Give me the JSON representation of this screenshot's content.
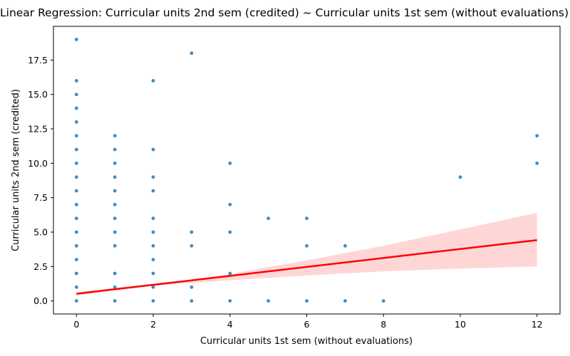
{
  "chart_data": {
    "type": "scatter",
    "title": "Linear Regression: Curricular units 2nd sem (credited) ~ Curricular units 1st sem (without evaluations)",
    "xlabel": "Curricular units 1st sem (without evaluations)",
    "ylabel": "Curricular units 2nd sem (credited)",
    "xlim": [
      -0.6,
      12.6
    ],
    "ylim": [
      -0.95,
      19.95
    ],
    "xticks": [
      0,
      2,
      4,
      6,
      8,
      10,
      12
    ],
    "xtick_labels": [
      "0",
      "2",
      "4",
      "6",
      "8",
      "10",
      "12"
    ],
    "yticks": [
      0,
      2.5,
      5,
      7.5,
      10,
      12.5,
      15,
      17.5
    ],
    "ytick_labels": [
      "0.0",
      "2.5",
      "5.0",
      "7.5",
      "10.0",
      "12.5",
      "15.0",
      "17.5"
    ],
    "grid": false,
    "points_color": "#1f77b4",
    "regression_color": "#ff0000",
    "ci_color": "#ffd6d6",
    "points": [
      [
        0,
        0
      ],
      [
        0,
        1
      ],
      [
        0,
        2
      ],
      [
        0,
        3
      ],
      [
        0,
        4
      ],
      [
        0,
        5
      ],
      [
        0,
        6
      ],
      [
        0,
        7
      ],
      [
        0,
        8
      ],
      [
        0,
        9
      ],
      [
        0,
        10
      ],
      [
        0,
        11
      ],
      [
        0,
        12
      ],
      [
        0,
        13
      ],
      [
        0,
        14
      ],
      [
        0,
        15
      ],
      [
        0,
        16
      ],
      [
        0,
        19
      ],
      [
        1,
        0
      ],
      [
        1,
        1
      ],
      [
        1,
        2
      ],
      [
        1,
        4
      ],
      [
        1,
        5
      ],
      [
        1,
        6
      ],
      [
        1,
        7
      ],
      [
        1,
        8
      ],
      [
        1,
        9
      ],
      [
        1,
        10
      ],
      [
        1,
        11
      ],
      [
        1,
        12
      ],
      [
        2,
        0
      ],
      [
        2,
        1
      ],
      [
        2,
        2
      ],
      [
        2,
        3
      ],
      [
        2,
        4
      ],
      [
        2,
        5
      ],
      [
        2,
        6
      ],
      [
        2,
        8
      ],
      [
        2,
        9
      ],
      [
        2,
        11
      ],
      [
        2,
        16
      ],
      [
        3,
        0
      ],
      [
        3,
        1
      ],
      [
        3,
        4
      ],
      [
        3,
        5
      ],
      [
        3,
        18
      ],
      [
        4,
        0
      ],
      [
        4,
        2
      ],
      [
        4,
        5
      ],
      [
        4,
        7
      ],
      [
        4,
        10
      ],
      [
        5,
        0
      ],
      [
        5,
        6
      ],
      [
        6,
        0
      ],
      [
        6,
        4
      ],
      [
        6,
        6
      ],
      [
        7,
        0
      ],
      [
        7,
        4
      ],
      [
        8,
        0
      ],
      [
        10,
        9
      ],
      [
        12,
        10
      ],
      [
        12,
        12
      ]
    ],
    "regression": {
      "x": [
        0,
        12
      ],
      "y": [
        0.52,
        4.42
      ]
    },
    "confidence_band": {
      "x": [
        0,
        1,
        2,
        3,
        4,
        6,
        8,
        10,
        12
      ],
      "lower": [
        0.38,
        0.8,
        1.1,
        1.3,
        1.5,
        1.85,
        2.15,
        2.35,
        2.5
      ],
      "upper": [
        0.62,
        0.95,
        1.25,
        1.55,
        1.95,
        2.95,
        4.0,
        5.2,
        6.4
      ]
    }
  }
}
